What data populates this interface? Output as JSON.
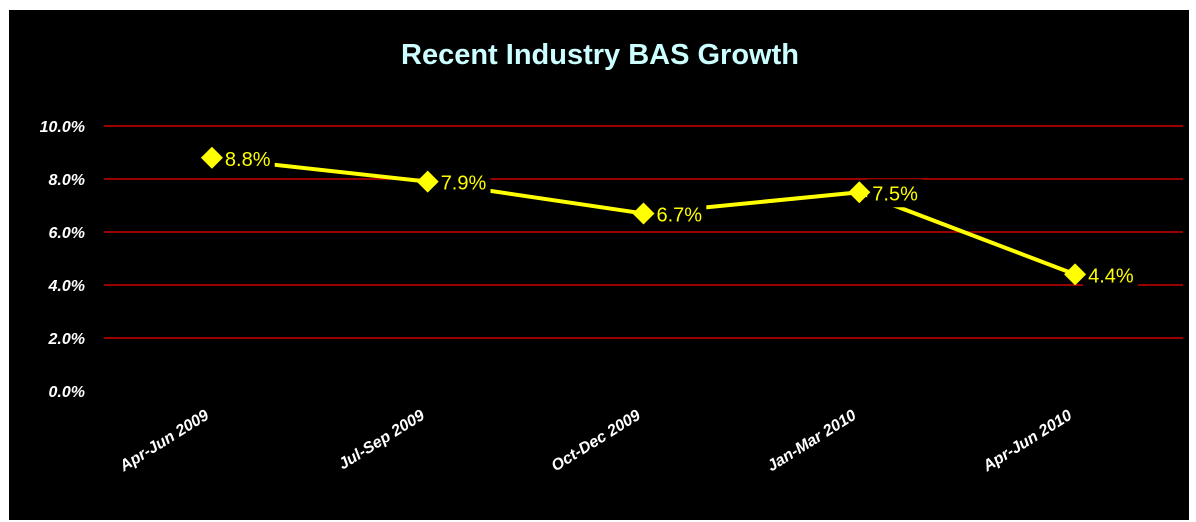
{
  "chart_data": {
    "type": "line",
    "title": "Recent Industry BAS Growth",
    "xlabel": "",
    "ylabel": "",
    "categories": [
      "Apr-Jun 2009",
      "Jul-Sep 2009",
      "Oct-Dec 2009",
      "Jan-Mar 2010",
      "Apr-Jun 2010"
    ],
    "values": [
      8.8,
      7.9,
      6.7,
      7.5,
      4.4
    ],
    "data_labels": [
      "8.8%",
      "7.9%",
      "6.7%",
      "7.5%",
      "4.4%"
    ],
    "y_ticks": [
      "0.0%",
      "2.0%",
      "4.0%",
      "6.0%",
      "8.0%",
      "10.0%"
    ],
    "y_tick_values": [
      0,
      2,
      4,
      6,
      8,
      10
    ],
    "ylim": [
      0,
      10
    ],
    "grid": true,
    "legend": "none",
    "colors": {
      "background": "#000000",
      "title": "#ccffff",
      "line": "#ffff00",
      "marker": "#ffff00",
      "gridline": "#cc0000",
      "tick_text": "#ffffff",
      "data_label": "#ffff00"
    }
  }
}
